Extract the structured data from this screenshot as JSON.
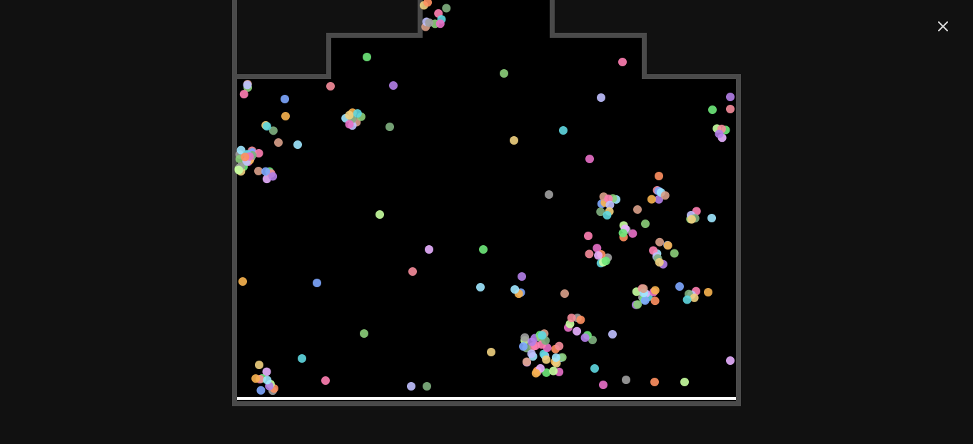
{
  "overlay": {
    "background_color": "#111111",
    "close_icon": "close-icon"
  },
  "simulation": {
    "wall_color": "#4a4a4a",
    "chamber_color": "#000000",
    "floor_color": "#ffffff",
    "particle_colors": [
      "#6ee87a",
      "#f58c9a",
      "#b47fe8",
      "#7ea7ff",
      "#f7b24f",
      "#9ee7ff",
      "#d9a08a",
      "#8ccf7a",
      "#ff7fb2",
      "#c0c0ff",
      "#7fb07f",
      "#f0d080",
      "#5fd7e0",
      "#e870c8",
      "#a0a0a0",
      "#ff9060",
      "#c8ffa0",
      "#e8b0ff"
    ]
  }
}
